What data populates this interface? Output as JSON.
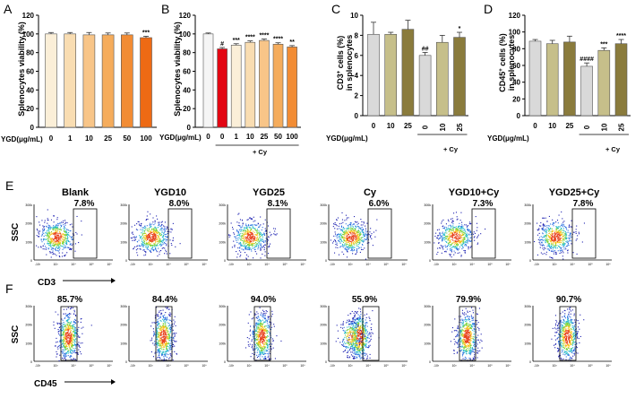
{
  "chart_data": [
    {
      "panel": "A",
      "type": "bar",
      "ylabel": "Splenocytes viability (%)",
      "xlabel": "YGD(μg/mL)",
      "ylim": [
        0,
        120
      ],
      "yticks": [
        0,
        20,
        40,
        60,
        80,
        100,
        120
      ],
      "categories": [
        "0",
        "1",
        "10",
        "25",
        "50",
        "100"
      ],
      "values": [
        100,
        100,
        99,
        99,
        99,
        96
      ],
      "errors": [
        1.5,
        1.5,
        2.5,
        2,
        2,
        1.5
      ],
      "colors": [
        "#fbefd8",
        "#f9ddb2",
        "#f8c588",
        "#f5ac5c",
        "#f28c34",
        "#ee6a14"
      ],
      "significance": [
        "",
        "",
        "",
        "",
        "",
        "***"
      ],
      "group_label": ""
    },
    {
      "panel": "B",
      "type": "bar",
      "ylabel": "Splenocytes viability (%)",
      "xlabel": "YGD(μg/mL)",
      "ylim": [
        0,
        120
      ],
      "yticks": [
        0,
        20,
        40,
        60,
        80,
        100,
        120
      ],
      "categories": [
        "0",
        "0",
        "1",
        "10",
        "25",
        "50",
        "100"
      ],
      "values": [
        100,
        84,
        88,
        91,
        93,
        89,
        86
      ],
      "errors": [
        1,
        1.5,
        1.5,
        1.5,
        1.5,
        1.5,
        1.5
      ],
      "colors": [
        "#f5f5f5",
        "#e30613",
        "#fbefd8",
        "#f9ddb2",
        "#f8c588",
        "#f5ac5c",
        "#f28c34"
      ],
      "significance": [
        "",
        "#",
        "***",
        "****",
        "****",
        "****",
        "**"
      ],
      "group_label": "+ Cy",
      "group_start": 1,
      "group_end": 6
    },
    {
      "panel": "C",
      "type": "bar",
      "ylabel_parts": [
        "CD3",
        "+",
        " cells (%)"
      ],
      "ylabel2": "in splenocytes",
      "xlabel": "YGD(μg/mL)",
      "ylim": [
        0,
        10
      ],
      "yticks": [
        0,
        2,
        4,
        6,
        8,
        10
      ],
      "categories": [
        "0",
        "10",
        "25",
        "0",
        "10",
        "25"
      ],
      "values": [
        8.1,
        8.1,
        8.6,
        6.0,
        7.3,
        7.8
      ],
      "errors": [
        1.2,
        0.2,
        0.9,
        0.3,
        0.7,
        0.5
      ],
      "colors": [
        "#d9d9d9",
        "#c6bf8a",
        "#8a7b3c",
        "#d9d9d9",
        "#c6bf8a",
        "#8a7b3c"
      ],
      "significance": [
        "",
        "",
        "",
        "##",
        "",
        "*"
      ],
      "group_label": "+ Cy",
      "group_start": 3,
      "group_end": 5
    },
    {
      "panel": "D",
      "type": "bar",
      "ylabel_parts": [
        "CD45",
        "+",
        " cells (%)"
      ],
      "ylabel2": "in splenocytes",
      "xlabel": "YGD(μg/mL)",
      "ylim": [
        0,
        120
      ],
      "yticks": [
        0,
        20,
        40,
        60,
        80,
        100,
        120
      ],
      "categories": [
        "0",
        "10",
        "25",
        "0",
        "10",
        "25"
      ],
      "values": [
        89,
        86,
        88,
        59,
        78,
        86
      ],
      "errors": [
        2,
        4,
        7,
        4,
        3,
        5
      ],
      "colors": [
        "#d9d9d9",
        "#c6bf8a",
        "#8a7b3c",
        "#d9d9d9",
        "#c6bf8a",
        "#8a7b3c"
      ],
      "significance": [
        "",
        "",
        "",
        "####",
        "***",
        "****"
      ],
      "group_label": "+ Cy",
      "group_start": 3,
      "group_end": 5
    },
    {
      "panel": "E",
      "type": "scatter",
      "ylabel": "SSC",
      "xlabel": "CD3",
      "titles": [
        "Blank",
        "YGD10",
        "YGD25",
        "Cy",
        "YGD10+Cy",
        "YGD25+Cy"
      ],
      "percentages": [
        "7.8%",
        "8.0%",
        "8.1%",
        "6.0%",
        "7.3%",
        "7.8%"
      ],
      "yticks": [
        "300k",
        "200k",
        "100k",
        "0"
      ],
      "xticks": [
        "-10³",
        "10³",
        "10⁴",
        "10⁵",
        "10⁶"
      ]
    },
    {
      "panel": "F",
      "type": "scatter",
      "ylabel": "SSC",
      "xlabel": "CD45",
      "percentages": [
        "85.7%",
        "84.4%",
        "94.0%",
        "55.9%",
        "79.9%",
        "90.7%"
      ],
      "yticks": [
        "300k",
        "200k",
        "100k",
        "0"
      ],
      "xticks": [
        "-10³",
        "10³",
        "10⁴",
        "10⁵",
        "10⁶"
      ]
    }
  ]
}
